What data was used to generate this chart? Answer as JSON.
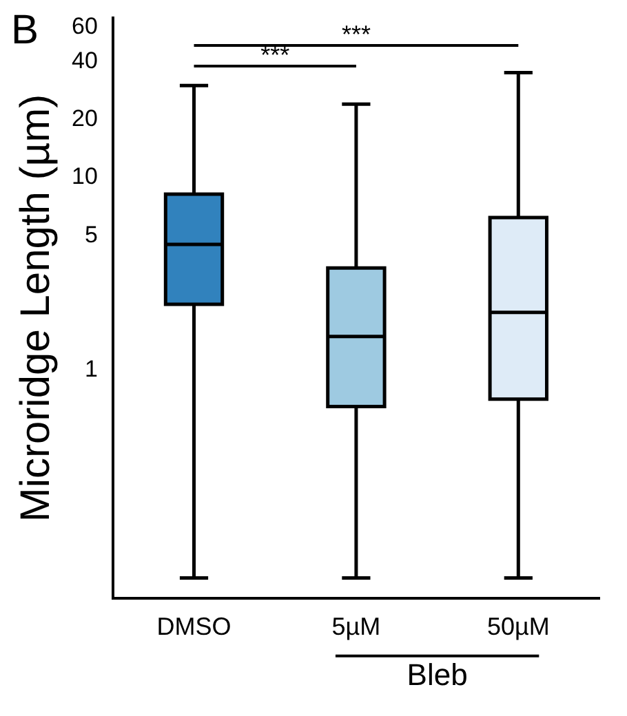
{
  "chart_data": {
    "type": "box",
    "ylabel": "Microridge Length (µm)",
    "xlabel": "Bleb",
    "categories": [
      "DMSO",
      "5µM",
      "50µM"
    ],
    "colors": [
      "#3182bd",
      "#9ecae1",
      "#deebf7"
    ],
    "boxes": [
      {
        "low": 0.084,
        "q1": 2.2,
        "median": 4.5,
        "q3": 8.2,
        "high": 30
      },
      {
        "low": 0.084,
        "q1": 0.65,
        "median": 1.5,
        "q3": 3.4,
        "high": 24
      },
      {
        "low": 0.084,
        "q1": 0.71,
        "median": 2.0,
        "q3": 6.2,
        "high": 35
      }
    ],
    "log": "y",
    "ylim": [
      0.066,
      67
    ],
    "yticks": [
      1,
      5,
      10,
      20,
      40,
      60
    ],
    "grid": false,
    "legend": false,
    "annotations": [
      "B",
      "***",
      "***"
    ]
  }
}
